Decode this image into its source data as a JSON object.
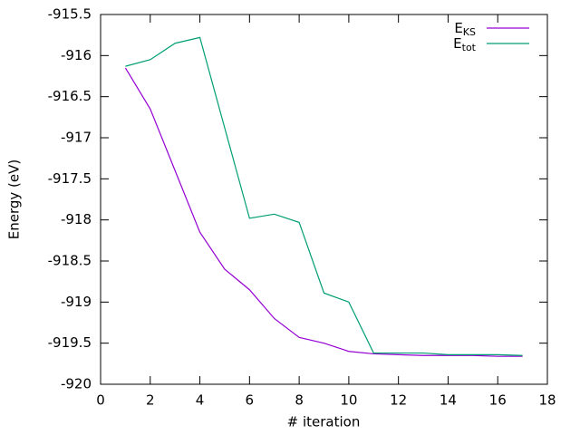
{
  "chart_data": {
    "type": "line",
    "xlabel": "# iteration",
    "ylabel": "Energy (eV)",
    "x": [
      1,
      2,
      3,
      4,
      5,
      6,
      7,
      8,
      9,
      10,
      11,
      12,
      13,
      14,
      15,
      16,
      17
    ],
    "series": [
      {
        "name": "EKS",
        "color": "#9400d3",
        "values": [
          -916.15,
          -916.65,
          -917.4,
          -918.15,
          -918.6,
          -918.85,
          -919.2,
          -919.43,
          -919.5,
          -919.6,
          -919.63,
          -919.64,
          -919.65,
          -919.65,
          -919.65,
          -919.66,
          -919.66
        ]
      },
      {
        "name": "Etot",
        "color": "#009e73",
        "values": [
          -916.13,
          -916.05,
          -915.85,
          -915.78,
          -916.88,
          -917.98,
          -917.93,
          -918.03,
          -918.89,
          -919.0,
          -919.62,
          -919.62,
          -919.62,
          -919.64,
          -919.64,
          -919.64,
          -919.65
        ]
      }
    ],
    "xlim": [
      0,
      18
    ],
    "xticks": [
      0,
      2,
      4,
      6,
      8,
      10,
      12,
      14,
      16,
      18
    ],
    "ylim": [
      -920,
      -915.5
    ],
    "yticks": [
      -920,
      -919.5,
      -919,
      -918.5,
      -918,
      -917.5,
      -917,
      -916.5,
      -916,
      -915.5
    ],
    "legend": "top-right"
  }
}
